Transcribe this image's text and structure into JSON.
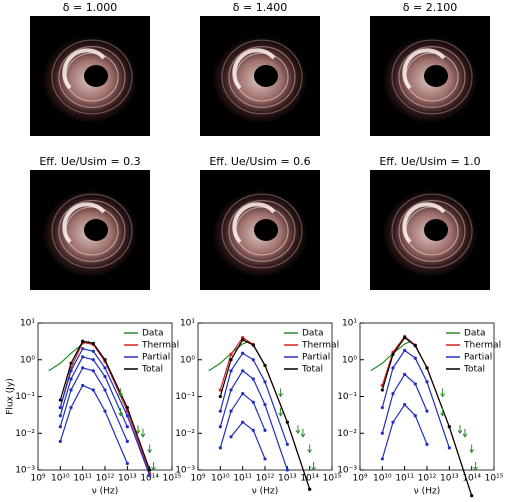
{
  "image_panels": [
    {
      "title": "δ = 1.000"
    },
    {
      "title": "δ = 1.400"
    },
    {
      "title": "δ = 2.100"
    },
    {
      "title": "Eff. Ue/Usim = 0.3"
    },
    {
      "title": "Eff. Ue/Usim = 0.6"
    },
    {
      "title": "Eff. Ue/Usim = 1.0"
    }
  ],
  "chart_data": [
    {
      "type": "line",
      "log_x": true,
      "log_y": true,
      "x_label": "ν (Hz)",
      "y_label": "Flux (Jy)",
      "xlim": [
        1000000000.0,
        1000000000000000.0
      ],
      "ylim": [
        0.001,
        10
      ],
      "xticks": [
        {
          "value": 1000000000.0,
          "label": "10⁹"
        },
        {
          "value": 10000000000.0,
          "label": "10¹⁰"
        },
        {
          "value": 100000000000.0,
          "label": "10¹¹"
        },
        {
          "value": 1000000000000.0,
          "label": "10¹²"
        },
        {
          "value": 10000000000000.0,
          "label": "10¹³"
        },
        {
          "value": 100000000000000.0,
          "label": "10¹⁴"
        },
        {
          "value": 1000000000000000.0,
          "label": "10¹⁵"
        }
      ],
      "yticks": [
        {
          "value": 0.001,
          "label": "10⁻³"
        },
        {
          "value": 0.01,
          "label": "10⁻²"
        },
        {
          "value": 0.1,
          "label": "10⁻¹"
        },
        {
          "value": 1,
          "label": "10⁰"
        },
        {
          "value": 10,
          "label": "10¹"
        }
      ],
      "series": [
        {
          "name": "Data",
          "color": "#2a8a2a",
          "x": [
            3000000000.0,
            10000000000.0,
            30000000000.0,
            100000000000.0,
            200000000000.0
          ],
          "values": [
            0.5,
            0.8,
            1.5,
            2.7,
            3.2
          ]
        },
        {
          "name": "Thermal",
          "color": "#d62020",
          "x": [
            10000000000.0,
            30000000000.0,
            100000000000.0,
            300000000000.0,
            1000000000000.0,
            10000000000000.0,
            100000000000000.0
          ],
          "values": [
            0.05,
            0.6,
            3.0,
            2.6,
            0.9,
            0.04,
            0.0008
          ]
        },
        {
          "name": "Partial",
          "color": "#2030c0",
          "x": [
            10000000000.0,
            30000000000.0,
            100000000000.0,
            300000000000.0,
            1000000000000.0,
            10000000000000.0,
            100000000000000.0
          ],
          "values": [
            0.05,
            0.5,
            2.0,
            1.7,
            0.6,
            0.03,
            0.0007
          ]
        },
        {
          "name": "Partial",
          "color": "#2030c0",
          "x": [
            10000000000.0,
            30000000000.0,
            100000000000.0,
            300000000000.0,
            1000000000000.0,
            10000000000000.0,
            100000000000000.0
          ],
          "values": [
            0.03,
            0.3,
            1.2,
            1.0,
            0.35,
            0.015,
            null
          ]
        },
        {
          "name": "Partial",
          "color": "#2030c0",
          "x": [
            10000000000.0,
            30000000000.0,
            100000000000.0,
            300000000000.0,
            1000000000000.0,
            10000000000000.0,
            100000000000000.0
          ],
          "values": [
            0.015,
            0.15,
            0.6,
            0.5,
            0.15,
            0.006,
            null
          ]
        },
        {
          "name": "Partial",
          "color": "#2030c0",
          "x": [
            10000000000.0,
            30000000000.0,
            100000000000.0,
            300000000000.0,
            1000000000000.0,
            10000000000000.0,
            100000000000000.0
          ],
          "values": [
            0.006,
            0.05,
            0.2,
            0.15,
            0.04,
            0.0015,
            null
          ]
        },
        {
          "name": "Total",
          "color": "#000000",
          "x": [
            10000000000.0,
            30000000000.0,
            100000000000.0,
            300000000000.0,
            1000000000000.0,
            10000000000000.0,
            100000000000000.0
          ],
          "values": [
            0.08,
            0.8,
            3.2,
            2.8,
            1.0,
            0.05,
            0.001
          ]
        }
      ],
      "upper_limits": {
        "color": "#2a8a2a",
        "x": [
          5000000000000.0,
          5000000000000.0,
          30000000000000.0,
          50000000000000.0,
          100000000000000.0,
          150000000000000.0
        ],
        "values": [
          0.1,
          0.03,
          0.01,
          0.008,
          0.003,
          0.001
        ]
      }
    },
    {
      "type": "line",
      "log_x": true,
      "log_y": true,
      "x_label": "ν (Hz)",
      "xlim": [
        1000000000.0,
        1000000000000000.0
      ],
      "ylim": [
        0.001,
        10
      ],
      "xticks": [
        {
          "value": 1000000000.0,
          "label": "10⁹"
        },
        {
          "value": 10000000000.0,
          "label": "10¹⁰"
        },
        {
          "value": 100000000000.0,
          "label": "10¹¹"
        },
        {
          "value": 1000000000000.0,
          "label": "10¹²"
        },
        {
          "value": 10000000000000.0,
          "label": "10¹³"
        },
        {
          "value": 100000000000000.0,
          "label": "10¹⁴"
        },
        {
          "value": 1000000000000000.0,
          "label": "10¹⁵"
        }
      ],
      "yticks": [
        {
          "value": 0.001,
          "label": "10⁻³"
        },
        {
          "value": 0.01,
          "label": "10⁻²"
        },
        {
          "value": 0.1,
          "label": "10⁻¹"
        },
        {
          "value": 1,
          "label": "10⁰"
        },
        {
          "value": 10,
          "label": "10¹"
        }
      ],
      "series": [
        {
          "name": "Data",
          "color": "#2a8a2a",
          "x": [
            3000000000.0,
            10000000000.0,
            30000000000.0,
            100000000000.0,
            200000000000.0
          ],
          "values": [
            0.5,
            0.8,
            1.5,
            2.7,
            3.2
          ]
        },
        {
          "name": "Thermal",
          "color": "#d62020",
          "x": [
            10000000000.0,
            30000000000.0,
            100000000000.0,
            300000000000.0,
            1000000000000.0,
            10000000000000.0,
            100000000000000.0
          ],
          "values": [
            0.15,
            1.4,
            4.0,
            2.6,
            0.7,
            0.02,
            0.0003
          ]
        },
        {
          "name": "Partial",
          "color": "#2030c0",
          "x": [
            10000000000.0,
            30000000000.0,
            100000000000.0,
            300000000000.0,
            1000000000000.0,
            10000000000000.0,
            100000000000000.0
          ],
          "values": [
            0.04,
            0.5,
            1.5,
            1.0,
            0.25,
            0.005,
            null
          ]
        },
        {
          "name": "Partial",
          "color": "#2030c0",
          "x": [
            10000000000.0,
            30000000000.0,
            100000000000.0,
            300000000000.0,
            1000000000000.0,
            10000000000000.0,
            100000000000000.0
          ],
          "values": [
            0.015,
            0.15,
            0.5,
            0.3,
            0.06,
            0.001,
            null
          ]
        },
        {
          "name": "Partial",
          "color": "#2030c0",
          "x": [
            10000000000.0,
            30000000000.0,
            100000000000.0,
            300000000000.0,
            1000000000000.0,
            10000000000000.0,
            100000000000000.0
          ],
          "values": [
            0.004,
            0.04,
            0.12,
            0.07,
            0.012,
            null,
            null
          ]
        },
        {
          "name": "Partial",
          "color": "#2030c0",
          "x": [
            10000000000.0,
            30000000000.0,
            100000000000.0,
            300000000000.0,
            1000000000000.0,
            10000000000000.0,
            100000000000000.0
          ],
          "values": [
            null,
            0.008,
            0.02,
            0.012,
            0.002,
            null,
            null
          ]
        },
        {
          "name": "Total",
          "color": "#000000",
          "x": [
            10000000000.0,
            30000000000.0,
            100000000000.0,
            300000000000.0,
            1000000000000.0,
            10000000000000.0,
            100000000000000.0
          ],
          "values": [
            0.1,
            1.0,
            3.5,
            2.5,
            0.7,
            0.02,
            0.0003
          ]
        }
      ],
      "upper_limits": {
        "color": "#2a8a2a",
        "x": [
          5000000000000.0,
          5000000000000.0,
          30000000000000.0,
          50000000000000.0,
          100000000000000.0,
          150000000000000.0
        ],
        "values": [
          0.1,
          0.03,
          0.01,
          0.008,
          0.003,
          0.001
        ]
      }
    },
    {
      "type": "line",
      "log_x": true,
      "log_y": true,
      "x_label": "ν (Hz)",
      "xlim": [
        1000000000.0,
        1000000000000000.0
      ],
      "ylim": [
        0.001,
        10
      ],
      "xticks": [
        {
          "value": 1000000000.0,
          "label": "10⁹"
        },
        {
          "value": 10000000000.0,
          "label": "10¹⁰"
        },
        {
          "value": 100000000000.0,
          "label": "10¹¹"
        },
        {
          "value": 1000000000000.0,
          "label": "10¹²"
        },
        {
          "value": 10000000000000.0,
          "label": "10¹³"
        },
        {
          "value": 100000000000000.0,
          "label": "10¹⁴"
        },
        {
          "value": 1000000000000000.0,
          "label": "10¹⁵"
        }
      ],
      "yticks": [
        {
          "value": 0.001,
          "label": "10⁻³"
        },
        {
          "value": 0.01,
          "label": "10⁻²"
        },
        {
          "value": 0.1,
          "label": "10⁻¹"
        },
        {
          "value": 1,
          "label": "10⁰"
        },
        {
          "value": 10,
          "label": "10¹"
        }
      ],
      "series": [
        {
          "name": "Data",
          "color": "#2a8a2a",
          "x": [
            3000000000.0,
            10000000000.0,
            30000000000.0,
            100000000000.0,
            200000000000.0
          ],
          "values": [
            0.5,
            0.8,
            1.5,
            2.7,
            3.2
          ]
        },
        {
          "name": "Thermal",
          "color": "#d62020",
          "x": [
            10000000000.0,
            30000000000.0,
            100000000000.0,
            300000000000.0,
            1000000000000.0,
            10000000000000.0,
            100000000000000.0
          ],
          "values": [
            0.2,
            1.6,
            4.3,
            2.5,
            0.6,
            0.015,
            0.0002
          ]
        },
        {
          "name": "Partial",
          "color": "#2030c0",
          "x": [
            10000000000.0,
            30000000000.0,
            100000000000.0,
            300000000000.0,
            1000000000000.0,
            10000000000000.0,
            100000000000000.0
          ],
          "values": [
            0.05,
            0.6,
            1.8,
            1.1,
            0.25,
            0.004,
            null
          ]
        },
        {
          "name": "Partial",
          "color": "#2030c0",
          "x": [
            10000000000.0,
            30000000000.0,
            100000000000.0,
            300000000000.0,
            1000000000000.0,
            10000000000000.0,
            100000000000000.0
          ],
          "values": [
            0.01,
            0.12,
            0.4,
            0.22,
            0.04,
            null,
            null
          ]
        },
        {
          "name": "Partial",
          "color": "#2030c0",
          "x": [
            10000000000.0,
            30000000000.0,
            100000000000.0,
            300000000000.0,
            1000000000000.0,
            10000000000000.0,
            100000000000000.0
          ],
          "values": [
            0.002,
            0.02,
            0.06,
            0.03,
            0.005,
            null,
            null
          ]
        },
        {
          "name": "Total",
          "color": "#000000",
          "x": [
            10000000000.0,
            30000000000.0,
            100000000000.0,
            300000000000.0,
            1000000000000.0,
            10000000000000.0,
            100000000000000.0
          ],
          "values": [
            0.15,
            1.4,
            4.0,
            2.4,
            0.6,
            0.015,
            0.0002
          ]
        }
      ],
      "upper_limits": {
        "color": "#2a8a2a",
        "x": [
          5000000000000.0,
          5000000000000.0,
          30000000000000.0,
          50000000000000.0,
          100000000000000.0,
          150000000000000.0
        ],
        "values": [
          0.1,
          0.03,
          0.01,
          0.008,
          0.003,
          0.001
        ]
      }
    }
  ]
}
